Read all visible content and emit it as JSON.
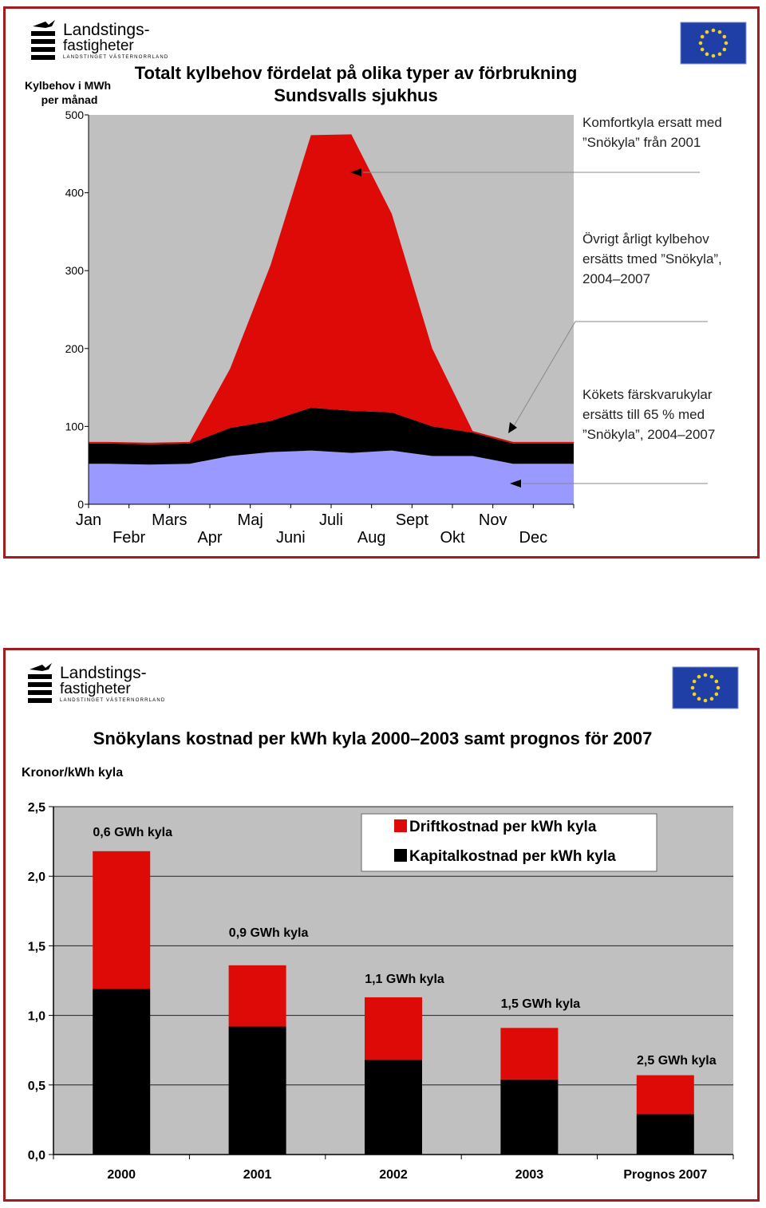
{
  "logo": {
    "line1": "Landstings-",
    "line2": "fastigheter",
    "line3": "LANDSTINGET VÄSTERNORRLAND"
  },
  "flag": {
    "name": "eu-flag",
    "colors": {
      "field": "#1f3fa6",
      "stars": "#f2d21b"
    }
  },
  "colors": {
    "panel_border": "#a31a1f",
    "red": "#dd0a08",
    "black": "#000000",
    "blue": "#9999ff",
    "plot_bg": "#c0c0c0"
  },
  "chart_data": [
    {
      "type": "area",
      "stacked": true,
      "title": "Totalt kylbehov fördelat på olika typer av förbrukning",
      "subtitle": "Sundsvalls sjukhus",
      "ylabel": "Kylbehov i MWh per månad",
      "ylim": [
        0,
        500
      ],
      "yticks": [
        0,
        100,
        200,
        300,
        400,
        500
      ],
      "categories": [
        "Jan",
        "Febr",
        "Mars",
        "Apr",
        "Maj",
        "Juni",
        "Juli",
        "Aug",
        "Sept",
        "Okt",
        "Nov",
        "Dec"
      ],
      "series": [
        {
          "color": "#9999ff",
          "values": [
            52,
            51,
            52,
            62,
            67,
            69,
            66,
            69,
            62,
            62,
            52,
            52
          ]
        },
        {
          "color": "#000000",
          "values": [
            26,
            26,
            26,
            36,
            40,
            55,
            54,
            49,
            38,
            30,
            26,
            26
          ]
        },
        {
          "color": "#dd0a08",
          "values": [
            2,
            2,
            2,
            76,
            200,
            350,
            355,
            255,
            100,
            2,
            2,
            2
          ]
        }
      ],
      "annotations": [
        {
          "lines": [
            "Komfortkyla ersatt med",
            "”Snökyla” från 2001"
          ]
        },
        {
          "lines": [
            "Övrigt årligt kylbehov",
            "ersätts tmed ”Snökyla”,",
            "2004–2007"
          ]
        },
        {
          "lines": [
            "Kökets färskvarukylar",
            "ersätts till 65 % med",
            "”Snökyla”, 2004–2007"
          ]
        }
      ]
    },
    {
      "type": "bar",
      "stacked": true,
      "title": "Snökylans kostnad per kWh kyla 2000–2003 samt prognos för 2007",
      "ylabel": "Kronor/kWh kyla",
      "ylim": [
        0,
        2.5
      ],
      "yticks": [
        "0,0",
        "0,5",
        "1,0",
        "1,5",
        "2,0",
        "2,5"
      ],
      "categories": [
        "2000",
        "2001",
        "2002",
        "2003",
        "Prognos 2007"
      ],
      "series": [
        {
          "name": "Kapitalkostnad per kWh kyla",
          "color": "#000000",
          "values": [
            1.19,
            0.92,
            0.68,
            0.54,
            0.29
          ]
        },
        {
          "name": "Driftkostnad per kWh kyla",
          "color": "#dd0a08",
          "values": [
            0.99,
            0.44,
            0.45,
            0.37,
            0.28
          ]
        }
      ],
      "bar_labels": [
        "0,6 GWh kyla",
        "0,9  GWh kyla",
        "1,1 GWh kyla",
        "1,5 GWh kyla",
        "2,5 GWh kyla"
      ],
      "legend": {
        "position": "top-right",
        "entries": [
          "Driftkostnad per kWh kyla",
          "Kapitalkostnad per kWh kyla"
        ]
      },
      "grid": true
    }
  ]
}
